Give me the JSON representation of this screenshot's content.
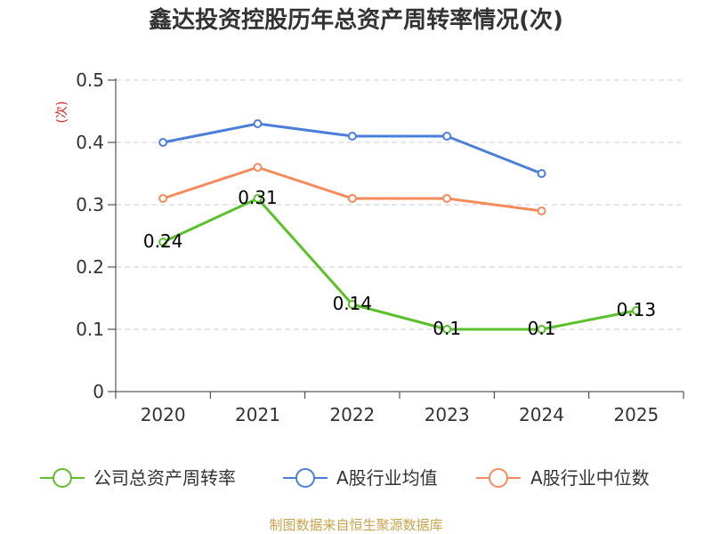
{
  "chart_data": {
    "type": "line",
    "title": "鑫达投资控股历年总资产周转率情况(次)",
    "xlabel": "",
    "ylabel": "(次)",
    "categories": [
      "2020",
      "2021",
      "2022",
      "2023",
      "2024",
      "2025"
    ],
    "ylim": [
      0,
      0.5
    ],
    "yticks": [
      0,
      0.1,
      0.2,
      0.3,
      0.4,
      0.5
    ],
    "grid": true,
    "legend_position": "bottom",
    "series": [
      {
        "name": "公司总资产周转率",
        "color": "#5ac12b",
        "values": [
          0.24,
          0.31,
          0.14,
          0.1,
          0.1,
          0.13
        ],
        "labels": [
          "0.24",
          "0.31",
          "0.14",
          "0.1",
          "0.1",
          "0.13"
        ]
      },
      {
        "name": "A股行业均值",
        "color": "#4a7fd9",
        "values": [
          0.4,
          0.43,
          0.41,
          0.41,
          0.35,
          null
        ]
      },
      {
        "name": "A股行业中位数",
        "color": "#f58a5b",
        "values": [
          0.31,
          0.36,
          0.31,
          0.31,
          0.29,
          null
        ]
      }
    ]
  },
  "source_note": "制图数据来自恒生聚源数据库",
  "colors": {
    "axis": "#333333",
    "grid": "#cccccc",
    "text": "#333333",
    "ylabel": "#e02020",
    "source_note": "#c9a34b"
  }
}
